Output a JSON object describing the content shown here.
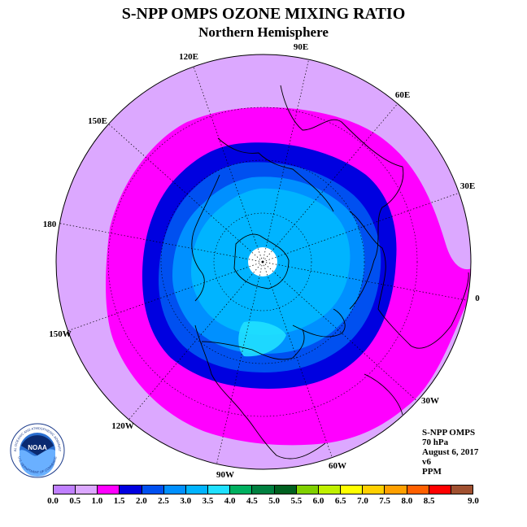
{
  "title": "S-NPP OMPS OZONE MIXING RATIO",
  "subtitle": "Northern Hemisphere",
  "longitude_labels": [
    {
      "id": "90e",
      "text": "90E"
    },
    {
      "id": "60e",
      "text": "60E"
    },
    {
      "id": "30e",
      "text": "30E"
    },
    {
      "id": "0",
      "text": "0"
    },
    {
      "id": "30w",
      "text": "30W"
    },
    {
      "id": "60w",
      "text": "60W"
    },
    {
      "id": "90w",
      "text": "90W"
    },
    {
      "id": "120w",
      "text": "120W"
    },
    {
      "id": "150w",
      "text": "150W"
    },
    {
      "id": "180",
      "text": "180"
    },
    {
      "id": "150e",
      "text": "150E"
    },
    {
      "id": "120e",
      "text": "120E"
    }
  ],
  "info": {
    "instrument": "S-NPP OMPS",
    "level": "70 hPa",
    "date": "August 6, 2017",
    "version": "v6",
    "units": "PPM"
  },
  "logo": {
    "text": "NOAA",
    "ring_text": "NATIONAL OCEANIC AND ATMOSPHERIC ADMINISTRATION",
    "ring_text_bottom": "U.S. DEPARTMENT OF COMMERCE"
  },
  "colorbar": {
    "tick_labels": [
      "0.0",
      "0.5",
      "1.0",
      "1.5",
      "2.0",
      "2.5",
      "3.0",
      "3.5",
      "4.0",
      "4.5",
      "5.0",
      "5.5",
      "6.0",
      "6.5",
      "7.0",
      "7.5",
      "8.0",
      "8.5",
      "9.0"
    ],
    "colors": [
      "#c080ff",
      "#dca8ff",
      "#ff00ff",
      "#0000e0",
      "#0050f0",
      "#0090ff",
      "#00b4ff",
      "#20e0ff",
      "#00b060",
      "#008040",
      "#006020",
      "#80d000",
      "#c0f000",
      "#ffff00",
      "#ffd000",
      "#ffa000",
      "#ff6000",
      "#ff0000",
      "#a05030"
    ]
  },
  "chart_data": {
    "type": "heatmap",
    "projection": "north polar stereographic",
    "variable": "ozone mixing ratio",
    "units": "PPM",
    "level_hPa": 70,
    "date": "August 6, 2017",
    "levels": [
      0.0,
      0.5,
      1.0,
      1.5,
      2.0,
      2.5,
      3.0,
      3.5,
      4.0,
      4.5,
      5.0,
      5.5,
      6.0,
      6.5,
      7.0,
      7.5,
      8.0,
      8.5,
      9.0
    ],
    "pattern": {
      "outer_ring_range": [
        0.5,
        1.0
      ],
      "middle_ring_range": [
        1.0,
        1.5
      ],
      "inner_ring_range": [
        1.5,
        2.0
      ],
      "polar_cap_range": [
        2.0,
        3.5
      ],
      "pole": "no data"
    }
  }
}
